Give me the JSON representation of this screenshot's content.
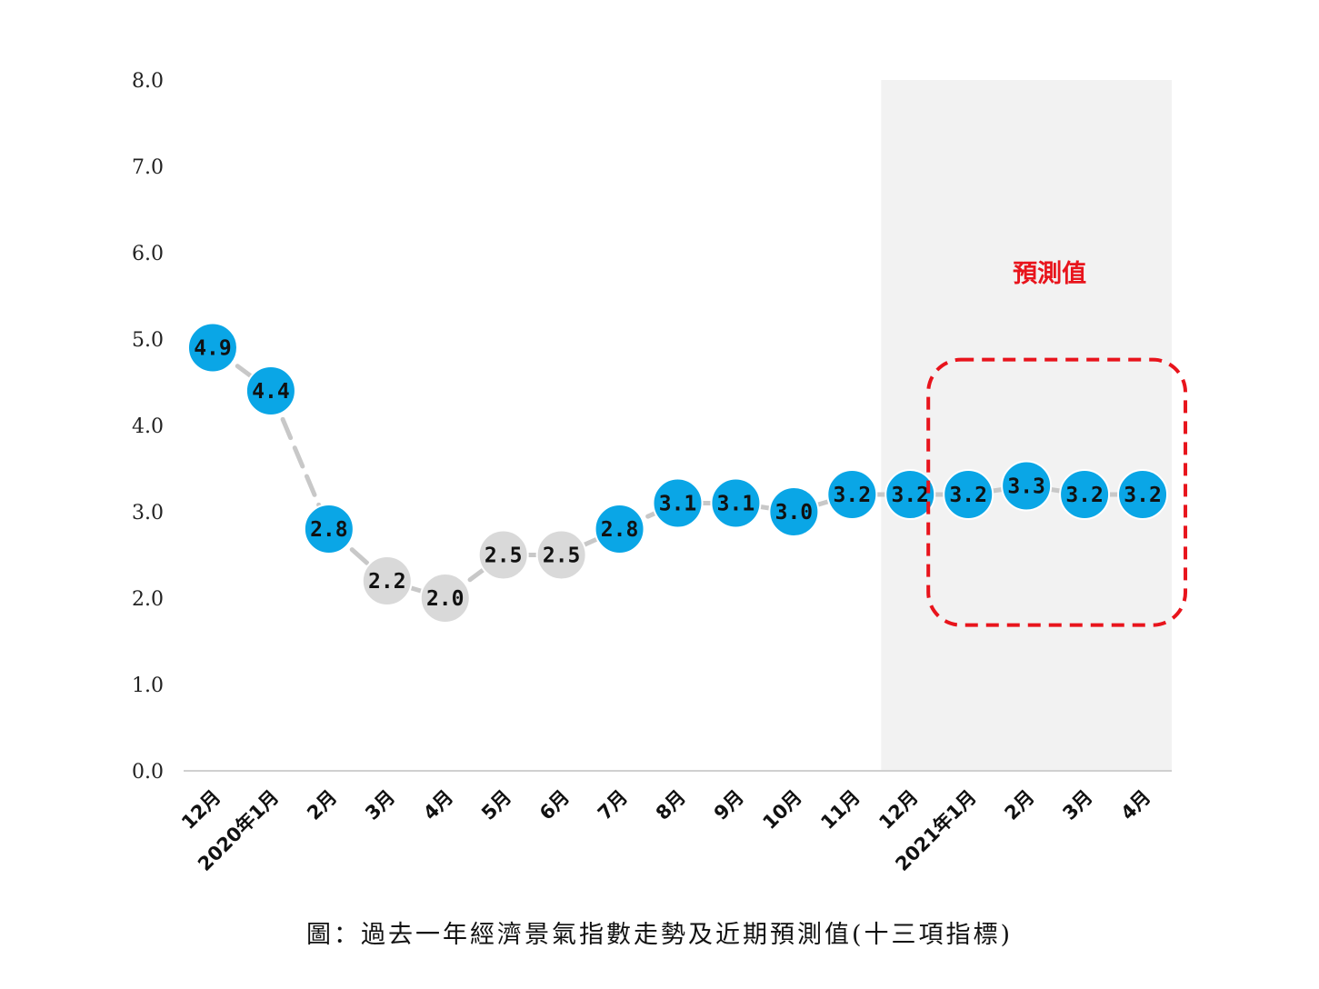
{
  "chart_data": {
    "type": "line",
    "title": "",
    "xlabel": "",
    "ylabel": "",
    "ylim": [
      0,
      8
    ],
    "yticks": [
      "0.0",
      "1.0",
      "2.0",
      "3.0",
      "4.0",
      "5.0",
      "6.0",
      "7.0",
      "8.0"
    ],
    "grid": false,
    "categories": [
      "12月",
      "2020年1月",
      "2月",
      "3月",
      "4月",
      "5月",
      "6月",
      "7月",
      "8月",
      "9月",
      "10月",
      "11月",
      "12月",
      "2021年1月",
      "2月",
      "3月",
      "4月"
    ],
    "values": [
      4.9,
      4.4,
      2.8,
      2.2,
      2.0,
      2.5,
      2.5,
      2.8,
      3.1,
      3.1,
      3.0,
      3.2,
      3.2,
      3.2,
      3.3,
      3.2,
      3.2
    ],
    "value_labels": [
      "4.9",
      "4.4",
      "2.8",
      "2.2",
      "2.0",
      "2.5",
      "2.5",
      "2.8",
      "3.1",
      "3.1",
      "3.0",
      "3.2",
      "3.2",
      "3.2",
      "3.3",
      "3.2",
      "3.2"
    ],
    "marker_colors": [
      "blue",
      "blue",
      "blue",
      "gray",
      "gray",
      "gray",
      "gray",
      "blue",
      "blue",
      "blue",
      "blue",
      "blue",
      "blue",
      "blue",
      "blue",
      "blue",
      "blue"
    ],
    "forecast": {
      "label": "預測值",
      "shaded_start_index": 12,
      "boxed_start_index": 13,
      "end_index": 16
    },
    "colors": {
      "blue_marker": "#0aa6e6",
      "gray_marker": "#d9d9d9",
      "line": "#c8c8c8",
      "shade": "#f2f2f2",
      "forecast_red": "#e8141c"
    }
  },
  "caption": "圖：過去一年經濟景氣指數走勢及近期預測值(十三項指標)"
}
